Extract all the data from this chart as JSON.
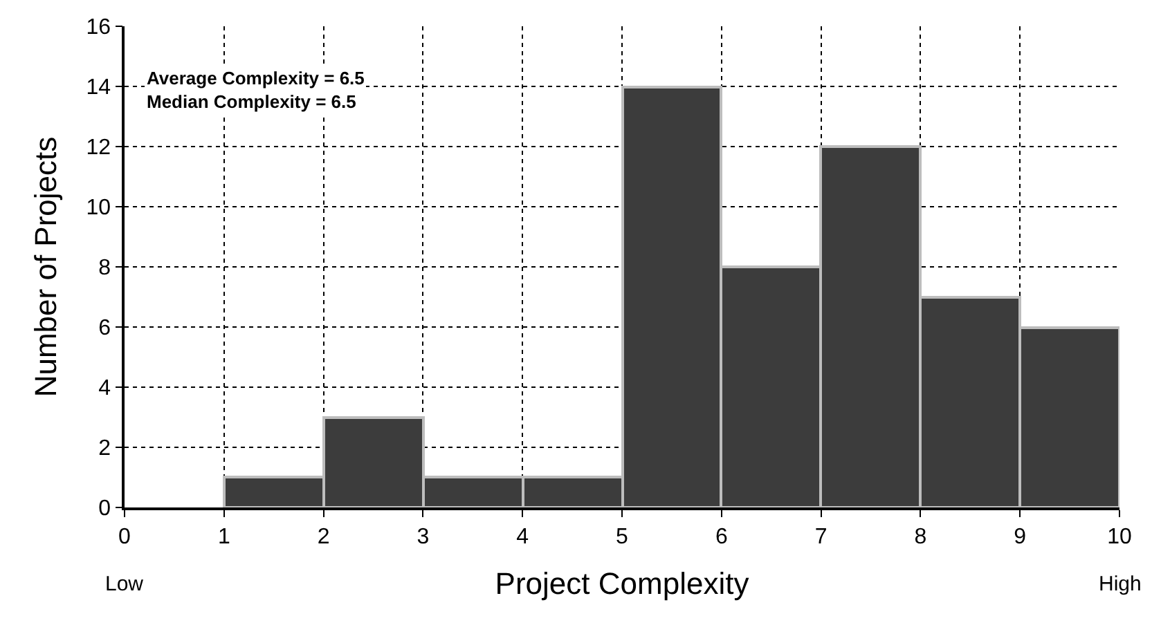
{
  "chart_data": {
    "type": "histogram",
    "xlabel": "Project Complexity",
    "ylabel": "Number of Projects",
    "bins": [
      1,
      2,
      3,
      4,
      5,
      6,
      7,
      8,
      9,
      10
    ],
    "values": [
      1,
      3,
      1,
      1,
      14,
      8,
      12,
      7,
      6
    ],
    "color": "#3c3c3c",
    "xlim": [
      0,
      10
    ],
    "xticks": [
      0,
      1,
      2,
      3,
      4,
      5,
      6,
      7,
      8,
      9,
      10
    ],
    "ylim": [
      0,
      16
    ],
    "yticks": [
      0,
      2,
      4,
      6,
      8,
      10,
      12,
      14,
      16
    ],
    "grid": true,
    "line_style": "dotted",
    "annotations": [
      "Average Complexity = 6.5\nMedian Complexity = 6.5",
      "Low",
      "High"
    ]
  }
}
